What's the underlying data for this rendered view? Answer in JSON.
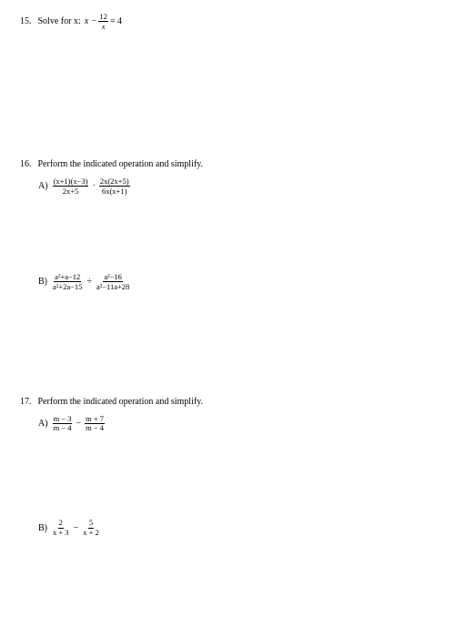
{
  "q15": {
    "number": "15.",
    "prompt_pre": "Solve for x:",
    "eq_left": "x −",
    "frac_num": "12",
    "frac_den": "x",
    "eq_right": "= 4"
  },
  "q16": {
    "number": "16.",
    "prompt": "Perform the indicated operation and simplify.",
    "A": {
      "label": "A)",
      "f1_num": "(x+1)(x−3)",
      "f1_den": "2x+5",
      "op": "·",
      "f2_num": "2x(2x+5)",
      "f2_den": "6x(x+1)"
    },
    "B": {
      "label": "B)",
      "f1_num": "a²+a−12",
      "f1_den": "a²+2a−15",
      "op": "÷",
      "f2_num": "a²−16",
      "f2_den": "a²−11a+28"
    }
  },
  "q17": {
    "number": "17.",
    "prompt": "Perform the indicated operation and simplify.",
    "A": {
      "label": "A)",
      "f1_num": "m − 3",
      "f1_den": "m − 4",
      "op": "−",
      "f2_num": "m + 7",
      "f2_den": "m − 4"
    },
    "B": {
      "label": "B)",
      "f1_num": "2",
      "f1_den": "x + 3",
      "op": "−",
      "f2_num": "5",
      "f2_den": "x + 2"
    }
  }
}
